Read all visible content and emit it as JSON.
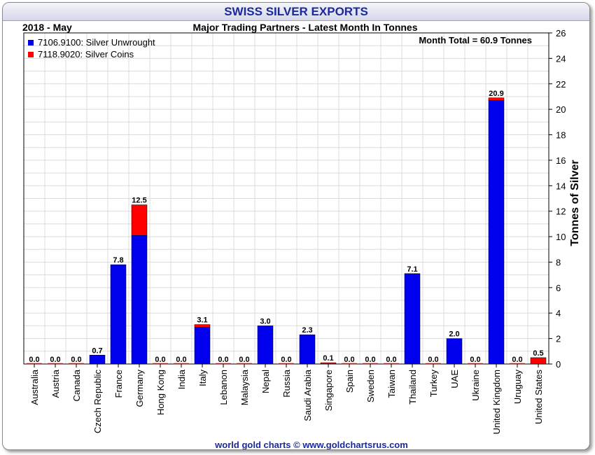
{
  "header": {
    "title": "SWISS SILVER EXPORTS",
    "period": "2018 - May",
    "subtitle": "Major Trading Partners - Latest Month In Tonnes",
    "month_total": "Month Total = 60.9 Tonnes",
    "footer": "world gold charts © www.goldchartsrus.com"
  },
  "colors": {
    "unwrought": "#0000ee",
    "coins": "#ff0000",
    "title": "#1a2a9c",
    "footer": "#1a2a9c",
    "grid": "#dcdcdc"
  },
  "chart_data": {
    "type": "bar",
    "stacked": true,
    "categories": [
      "Australia",
      "Austria",
      "Canada",
      "Czech Republic",
      "France",
      "Germany",
      "Hong Kong",
      "India",
      "Italy",
      "Lebanon",
      "Malaysia",
      "Nepal",
      "Russia",
      "Saudi Arabia",
      "Singapore",
      "Spain",
      "Sweden",
      "Taiwan",
      "Thailand",
      "Turkey",
      "UAE",
      "Ukraine",
      "United Kingdom",
      "Uruguay",
      "United States"
    ],
    "series": [
      {
        "name": "7106.9100: Silver Unwrought",
        "color": "#0000ee",
        "values": [
          0,
          0,
          0,
          0.7,
          7.8,
          10.1,
          0,
          0,
          2.9,
          0,
          0,
          3.0,
          0,
          2.3,
          0,
          0,
          0,
          0,
          7.1,
          0,
          2.0,
          0,
          20.7,
          0,
          0
        ]
      },
      {
        "name": "7118.9020: Silver Coins",
        "color": "#ff0000",
        "values": [
          0,
          0,
          0,
          0,
          0,
          2.4,
          0,
          0,
          0.2,
          0,
          0,
          0,
          0,
          0,
          0.1,
          0,
          0,
          0,
          0,
          0,
          0,
          0,
          0.2,
          0,
          0.5
        ]
      }
    ],
    "totals": [
      "0.0",
      "0.0",
      "0.0",
      "0.7",
      "7.8",
      "12.5",
      "0.0",
      "0.0",
      "3.1",
      "0.0",
      "0.0",
      "3.0",
      "0.0",
      "2.3",
      "0.1",
      "0.0",
      "0.0",
      "0.0",
      "7.1",
      "0.0",
      "2.0",
      "0.0",
      "20.9",
      "0.0",
      "0.5"
    ],
    "ylabel": "Tonnes of Silver",
    "ylim": [
      0,
      26
    ],
    "yticks": [
      0,
      2,
      4,
      6,
      8,
      10,
      12,
      14,
      16,
      18,
      20,
      22,
      24,
      26
    ],
    "y_axis_side": "right",
    "grid": true,
    "legend_position": "top-left"
  }
}
